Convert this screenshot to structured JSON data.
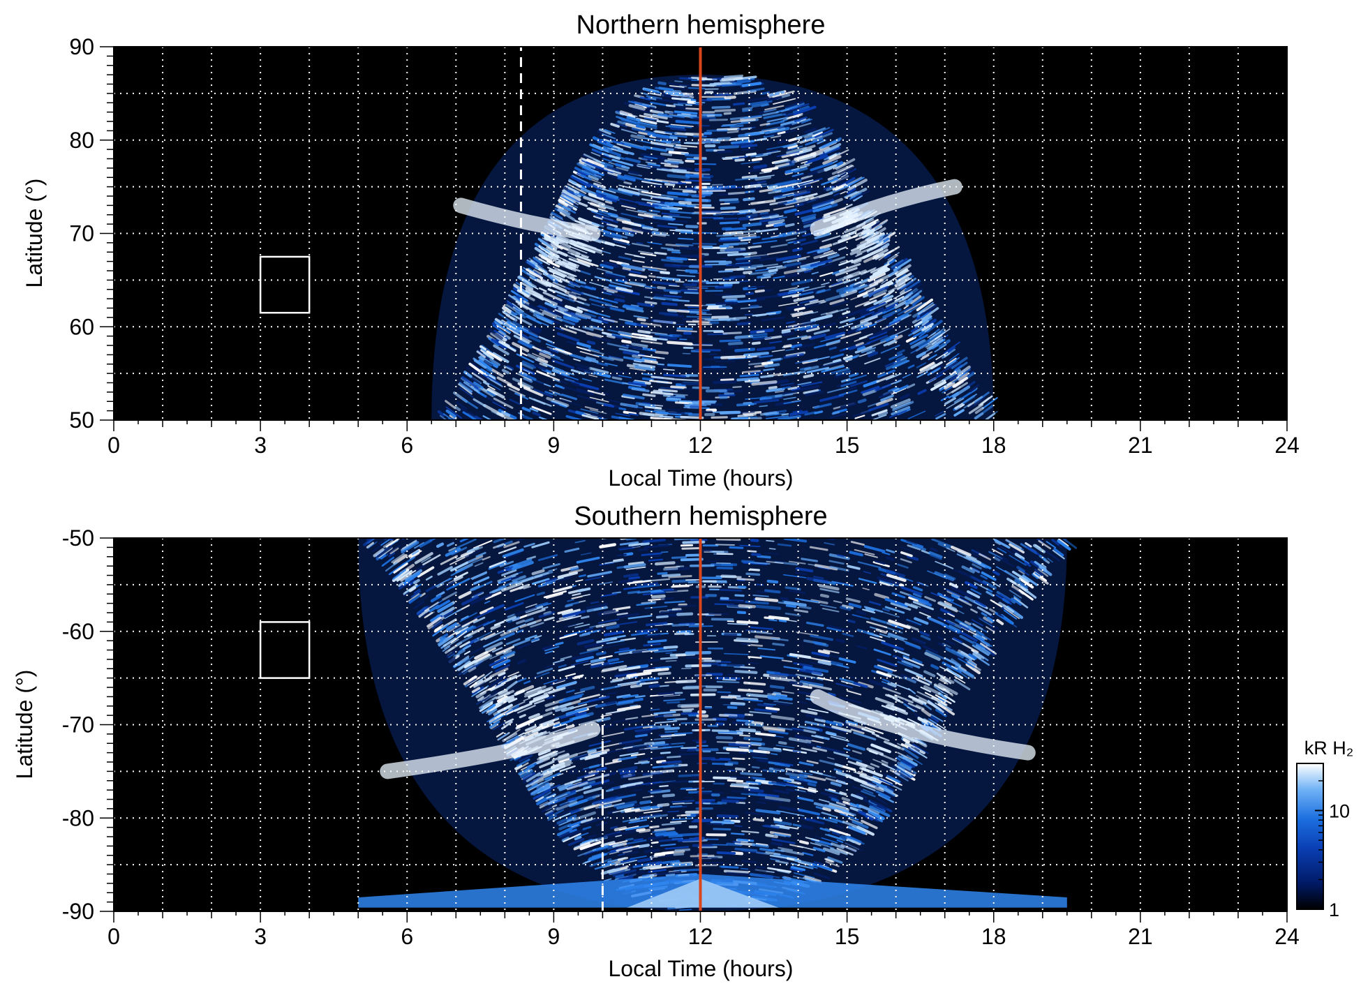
{
  "chart_data": [
    {
      "type": "heatmap",
      "title": "Northern hemisphere",
      "xlabel": "Local Time (hours)",
      "ylabel": "Latitude (°)",
      "xlim": [
        0,
        24
      ],
      "ylim": [
        50,
        90
      ],
      "x_ticks": [
        0,
        3,
        6,
        9,
        12,
        15,
        18,
        21,
        24
      ],
      "y_ticks": [
        50,
        60,
        70,
        80,
        90
      ],
      "grid": true,
      "grid_lines": {
        "x_step": 1,
        "y_step": 5,
        "style": "dotted",
        "color": "#ffffff"
      },
      "vertical_marker": {
        "x": 12,
        "color": "#d9461b",
        "style": "solid"
      },
      "dashed_marker": {
        "x": 8.33,
        "y_range": [
          50,
          90
        ],
        "color": "#ffffff"
      },
      "box": {
        "x": [
          3,
          4
        ],
        "y": [
          61.5,
          67.5
        ],
        "color": "#ffffff"
      },
      "data_extent": {
        "x_min": 6.5,
        "x_max": 18,
        "top_latitude": 87
      },
      "bright_band": {
        "dawn_latitude": 73,
        "dusk_latitude": 75,
        "description_level": "high"
      }
    },
    {
      "type": "heatmap",
      "title": "Southern hemisphere",
      "xlabel": "Local Time (hours)",
      "ylabel": "Latitude (°)",
      "xlim": [
        0,
        24
      ],
      "ylim": [
        -90,
        -50
      ],
      "x_ticks": [
        0,
        3,
        6,
        9,
        12,
        15,
        18,
        21,
        24
      ],
      "y_ticks": [
        -90,
        -80,
        -70,
        -60,
        -50
      ],
      "grid": true,
      "grid_lines": {
        "x_step": 1,
        "y_step": 5,
        "style": "dotted",
        "color": "#ffffff"
      },
      "vertical_marker": {
        "x": 12,
        "color": "#d9461b",
        "style": "solid"
      },
      "dashed_marker": {
        "x": 10,
        "y_range": [
          -90,
          -69
        ],
        "color": "#ffffff"
      },
      "box": {
        "x": [
          3,
          4
        ],
        "y": [
          -65,
          -59
        ],
        "color": "#ffffff"
      },
      "data_extent": {
        "x_min": 5,
        "x_max": 19.5,
        "top_latitude": -50
      },
      "bright_band": {
        "dawn_latitude": -75,
        "dusk_latitude": -73
      }
    }
  ],
  "colorbar": {
    "label": "kR H₂",
    "ticks": [
      {
        "value": 1,
        "label": "1"
      },
      {
        "value": 10,
        "label": "10"
      }
    ],
    "scale": "log",
    "range": [
      1,
      30
    ],
    "colors": [
      "#000000",
      "#001a66",
      "#0a3fb4",
      "#1c6fe0",
      "#6fb2f5",
      "#ffffff"
    ]
  }
}
